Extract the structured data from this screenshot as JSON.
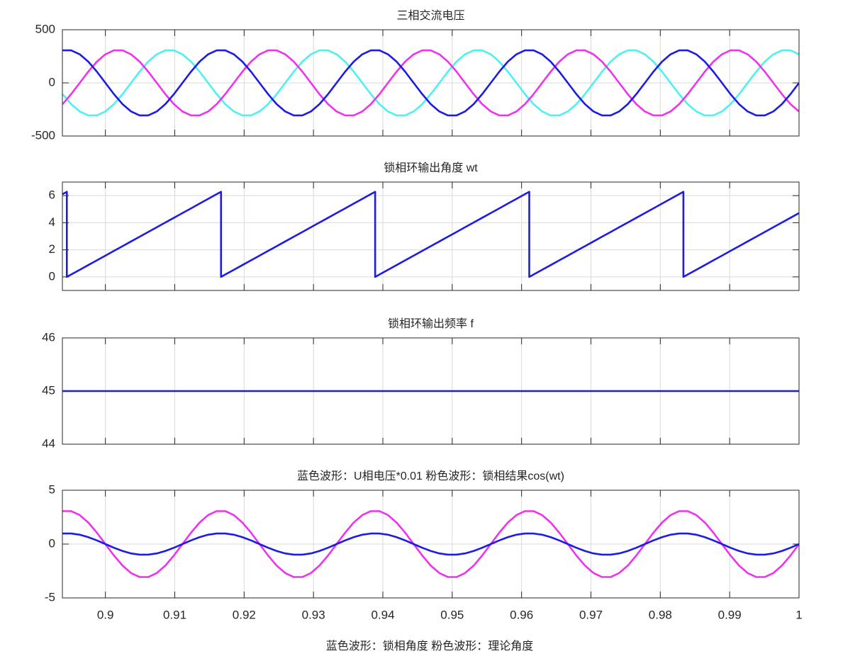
{
  "chart_data": [
    {
      "type": "line",
      "title": "三相交流电压",
      "xlim": [
        0.8938,
        1
      ],
      "ylim": [
        -500,
        500
      ],
      "yticks": [
        -500,
        0,
        500
      ],
      "xticks": [
        0.9,
        0.91,
        0.92,
        0.93,
        0.94,
        0.95,
        0.96,
        0.97,
        0.98,
        0.99,
        1
      ],
      "show_xtick_labels": false,
      "grid": true,
      "x": [
        0.89383,
        0.89506,
        0.8963,
        0.89753,
        0.89877,
        0.9,
        0.90123,
        0.90247,
        0.9037,
        0.90494,
        0.90617,
        0.90741,
        0.90864,
        0.90988,
        0.91111,
        0.91235,
        0.91358,
        0.91481,
        0.91605,
        0.91728,
        0.91852,
        0.91975,
        0.92099,
        0.92222,
        0.92346,
        0.92469,
        0.92593,
        0.92716,
        0.9284,
        0.92963,
        0.93086,
        0.9321,
        0.93333,
        0.93457,
        0.9358,
        0.93704,
        0.93827,
        0.93951,
        0.94074,
        0.94198,
        0.94321,
        0.94444,
        0.94568,
        0.94691,
        0.94815,
        0.94938,
        0.95062,
        0.95185,
        0.95309,
        0.95432,
        0.95556,
        0.95679,
        0.95802,
        0.95926,
        0.96049,
        0.96173,
        0.96296,
        0.9642,
        0.96543,
        0.96667,
        0.9679,
        0.96914,
        0.97037,
        0.9716,
        0.97284,
        0.97407,
        0.97531,
        0.97654,
        0.97778,
        0.97901,
        0.98025,
        0.98148,
        0.98272,
        0.98395,
        0.98519,
        0.98642,
        0.98765,
        0.98889,
        0.99012,
        0.99136,
        0.99259,
        0.99383,
        0.99506,
        0.9963,
        0.99753,
        0.99877,
        1
      ],
      "series": [
        {
          "color": "#4ff0f0",
          "values": [
            -106,
            -200,
            -269,
            -306,
            -306,
            -269,
            -200,
            -106,
            0,
            106,
            200,
            269,
            306,
            306,
            269,
            200,
            106,
            0,
            -106,
            -200,
            -269,
            -306,
            -306,
            -269,
            -200,
            -106,
            0,
            106,
            200,
            269,
            306,
            306,
            269,
            200,
            106,
            0,
            -106,
            -200,
            -269,
            -306,
            -306,
            -269,
            -200,
            -106,
            0,
            106,
            200,
            269,
            306,
            306,
            269,
            200,
            106,
            0,
            -106,
            -200,
            -269,
            -306,
            -306,
            -269,
            -200,
            -106,
            0,
            106,
            200,
            269,
            306,
            306,
            269,
            200,
            106,
            0,
            -106,
            -200,
            -269,
            -306,
            -306,
            -269,
            -200,
            -106,
            0,
            106,
            200,
            269,
            306,
            306,
            269
          ]
        },
        {
          "color": "#ee33ee",
          "values": [
            -200,
            -106,
            0,
            106,
            200,
            269,
            306,
            306,
            269,
            200,
            106,
            0,
            -106,
            -200,
            -269,
            -306,
            -306,
            -269,
            -200,
            -106,
            0,
            106,
            200,
            269,
            306,
            306,
            269,
            200,
            106,
            0,
            -106,
            -200,
            -269,
            -306,
            -306,
            -269,
            -200,
            -106,
            0,
            106,
            200,
            269,
            306,
            306,
            269,
            200,
            106,
            0,
            -106,
            -200,
            -269,
            -306,
            -306,
            -269,
            -200,
            -106,
            0,
            106,
            200,
            269,
            306,
            306,
            269,
            200,
            106,
            0,
            -106,
            -200,
            -269,
            -306,
            -306,
            -269,
            -200,
            -106,
            0,
            106,
            200,
            269,
            306,
            306,
            269,
            200,
            106,
            0,
            -106,
            -200,
            -269
          ]
        },
        {
          "color": "#1c1ce6",
          "values": [
            306,
            306,
            269,
            200,
            106,
            0,
            -106,
            -200,
            -269,
            -306,
            -306,
            -269,
            -200,
            -106,
            0,
            106,
            200,
            269,
            306,
            306,
            269,
            200,
            106,
            0,
            -106,
            -200,
            -269,
            -306,
            -306,
            -269,
            -200,
            -106,
            0,
            106,
            200,
            269,
            306,
            306,
            269,
            200,
            106,
            0,
            -106,
            -200,
            -269,
            -306,
            -306,
            -269,
            -200,
            -106,
            0,
            106,
            200,
            269,
            306,
            306,
            269,
            200,
            106,
            0,
            -106,
            -200,
            -269,
            -306,
            -306,
            -269,
            -200,
            -106,
            0,
            106,
            200,
            269,
            306,
            306,
            269,
            200,
            106,
            0,
            -106,
            -200,
            -269,
            -306,
            -306,
            -269,
            -200,
            -106,
            0
          ]
        }
      ]
    },
    {
      "type": "line",
      "title": "锁相环输出角度 wt",
      "xlim": [
        0.8938,
        1
      ],
      "ylim": [
        -1,
        7
      ],
      "yticks": [
        0,
        2,
        4,
        6
      ],
      "xticks": [
        0.9,
        0.91,
        0.92,
        0.93,
        0.94,
        0.95,
        0.96,
        0.97,
        0.98,
        0.99,
        1
      ],
      "show_xtick_labels": false,
      "grid": true,
      "x": [
        0.89383,
        0.89444,
        0.89444,
        0.89506,
        0.8963,
        0.89753,
        0.89877,
        0.9,
        0.90123,
        0.90247,
        0.9037,
        0.90494,
        0.90617,
        0.90741,
        0.90864,
        0.90988,
        0.91111,
        0.91235,
        0.91358,
        0.91481,
        0.91605,
        0.91667,
        0.91667,
        0.91728,
        0.91852,
        0.91975,
        0.92099,
        0.92222,
        0.92346,
        0.92469,
        0.92593,
        0.92716,
        0.9284,
        0.92963,
        0.93086,
        0.9321,
        0.93333,
        0.93457,
        0.9358,
        0.93704,
        0.93827,
        0.93889,
        0.93889,
        0.93951,
        0.94074,
        0.94198,
        0.94321,
        0.94444,
        0.94568,
        0.94691,
        0.94815,
        0.94938,
        0.95062,
        0.95185,
        0.95309,
        0.95432,
        0.95556,
        0.95679,
        0.95802,
        0.95926,
        0.96049,
        0.96111,
        0.96111,
        0.96173,
        0.96296,
        0.9642,
        0.96543,
        0.96667,
        0.9679,
        0.96914,
        0.97037,
        0.9716,
        0.97284,
        0.97407,
        0.97531,
        0.97654,
        0.97778,
        0.97901,
        0.98025,
        0.98148,
        0.98272,
        0.98333,
        0.98333,
        0.98395,
        0.98519,
        0.98642,
        0.98765,
        0.98889,
        0.99012,
        0.99136,
        0.99259,
        0.99383,
        0.99506,
        0.9963,
        0.99753,
        0.99877,
        1
      ],
      "series": [
        {
          "color": "#1c1ce6",
          "values": [
            6.109,
            6.283,
            0,
            0.175,
            0.524,
            0.873,
            1.222,
            1.571,
            1.92,
            2.269,
            2.618,
            2.967,
            3.316,
            3.665,
            4.014,
            4.363,
            4.712,
            5.061,
            5.411,
            5.76,
            6.109,
            6.283,
            0,
            0.175,
            0.524,
            0.873,
            1.222,
            1.571,
            1.92,
            2.269,
            2.618,
            2.967,
            3.316,
            3.665,
            4.014,
            4.363,
            4.712,
            5.061,
            5.411,
            5.76,
            6.109,
            6.283,
            0,
            0.175,
            0.524,
            0.873,
            1.222,
            1.571,
            1.92,
            2.269,
            2.618,
            2.967,
            3.316,
            3.665,
            4.014,
            4.363,
            4.712,
            5.061,
            5.411,
            5.76,
            6.109,
            6.283,
            0,
            0.175,
            0.524,
            0.873,
            1.222,
            1.571,
            1.92,
            2.269,
            2.618,
            2.967,
            3.316,
            3.665,
            4.014,
            4.363,
            4.712,
            5.061,
            5.411,
            5.76,
            6.109,
            6.283,
            0,
            0.175,
            0.524,
            0.873,
            1.222,
            1.571,
            1.92,
            2.269,
            2.618,
            2.967,
            3.316,
            3.665,
            4.014,
            4.363,
            4.712
          ]
        }
      ]
    },
    {
      "type": "line",
      "title": "锁相环输出频率 f",
      "xlim": [
        0.8938,
        1
      ],
      "ylim": [
        44,
        46
      ],
      "yticks": [
        44,
        45,
        46
      ],
      "xticks": [
        0.9,
        0.91,
        0.92,
        0.93,
        0.94,
        0.95,
        0.96,
        0.97,
        0.98,
        0.99,
        1
      ],
      "show_xtick_labels": false,
      "grid": true,
      "x": [
        0.89383,
        1
      ],
      "series": [
        {
          "color": "#1c1ce6",
          "values": [
            45,
            45
          ]
        }
      ]
    },
    {
      "type": "line",
      "title": "蓝色波形：U相电压*0.01      粉色波形：锁相结果cos(wt)",
      "xlim": [
        0.8938,
        1
      ],
      "ylim": [
        -5,
        5
      ],
      "yticks": [
        -5,
        0,
        5
      ],
      "xticks": [
        0.9,
        0.91,
        0.92,
        0.93,
        0.94,
        0.95,
        0.96,
        0.97,
        0.98,
        0.99,
        1
      ],
      "show_xtick_labels": true,
      "grid": true,
      "x": [
        0.89383,
        0.89506,
        0.8963,
        0.89753,
        0.89877,
        0.9,
        0.90123,
        0.90247,
        0.9037,
        0.90494,
        0.90617,
        0.90741,
        0.90864,
        0.90988,
        0.91111,
        0.91235,
        0.91358,
        0.91481,
        0.91605,
        0.91728,
        0.91852,
        0.91975,
        0.92099,
        0.92222,
        0.92346,
        0.92469,
        0.92593,
        0.92716,
        0.9284,
        0.92963,
        0.93086,
        0.9321,
        0.93333,
        0.93457,
        0.9358,
        0.93704,
        0.93827,
        0.93951,
        0.94074,
        0.94198,
        0.94321,
        0.94444,
        0.94568,
        0.94691,
        0.94815,
        0.94938,
        0.95062,
        0.95185,
        0.95309,
        0.95432,
        0.95556,
        0.95679,
        0.95802,
        0.95926,
        0.96049,
        0.96173,
        0.96296,
        0.9642,
        0.96543,
        0.96667,
        0.9679,
        0.96914,
        0.97037,
        0.9716,
        0.97284,
        0.97407,
        0.97531,
        0.97654,
        0.97778,
        0.97901,
        0.98025,
        0.98148,
        0.98272,
        0.98395,
        0.98519,
        0.98642,
        0.98765,
        0.98889,
        0.99012,
        0.99136,
        0.99259,
        0.99383,
        0.99506,
        0.9963,
        0.99753,
        0.99877,
        1
      ],
      "series": [
        {
          "color": "#ee33ee",
          "values": [
            3.06,
            3.06,
            2.69,
            2,
            1.06,
            0,
            -1.06,
            -2,
            -2.69,
            -3.06,
            -3.06,
            -2.69,
            -2,
            -1.06,
            0,
            1.06,
            2,
            2.69,
            3.06,
            3.06,
            2.69,
            2,
            1.06,
            0,
            -1.06,
            -2,
            -2.69,
            -3.06,
            -3.06,
            -2.69,
            -2,
            -1.06,
            0,
            1.06,
            2,
            2.69,
            3.06,
            3.06,
            2.69,
            2,
            1.06,
            0,
            -1.06,
            -2,
            -2.69,
            -3.06,
            -3.06,
            -2.69,
            -2,
            -1.06,
            0,
            1.06,
            2,
            2.69,
            3.06,
            3.06,
            2.69,
            2,
            1.06,
            0,
            -1.06,
            -2,
            -2.69,
            -3.06,
            -3.06,
            -2.69,
            -2,
            -1.06,
            0,
            1.06,
            2,
            2.69,
            3.06,
            3.06,
            2.69,
            2,
            1.06,
            0,
            -1.06,
            -2,
            -2.69,
            -3.06,
            -3.06,
            -2.69,
            -2,
            -1.06,
            0
          ]
        },
        {
          "color": "#1c1ce6",
          "values": [
            0.98,
            0.98,
            0.87,
            0.64,
            0.34,
            0,
            -0.34,
            -0.64,
            -0.87,
            -0.98,
            -0.98,
            -0.87,
            -0.64,
            -0.34,
            0,
            0.34,
            0.64,
            0.87,
            0.98,
            0.98,
            0.87,
            0.64,
            0.34,
            0,
            -0.34,
            -0.64,
            -0.87,
            -0.98,
            -0.98,
            -0.87,
            -0.64,
            -0.34,
            0,
            0.34,
            0.64,
            0.87,
            0.98,
            0.98,
            0.87,
            0.64,
            0.34,
            0,
            -0.34,
            -0.64,
            -0.87,
            -0.98,
            -0.98,
            -0.87,
            -0.64,
            -0.34,
            0,
            0.34,
            0.64,
            0.87,
            0.98,
            0.98,
            0.87,
            0.64,
            0.34,
            0,
            -0.34,
            -0.64,
            -0.87,
            -0.98,
            -0.98,
            -0.87,
            -0.64,
            -0.34,
            0,
            0.34,
            0.64,
            0.87,
            0.98,
            0.98,
            0.87,
            0.64,
            0.34,
            0,
            -0.34,
            -0.64,
            -0.87,
            -0.98,
            -0.98,
            -0.87,
            -0.64,
            -0.34,
            0
          ]
        }
      ]
    }
  ],
  "caption": "蓝色波形：锁相角度      粉色波形：理论角度"
}
